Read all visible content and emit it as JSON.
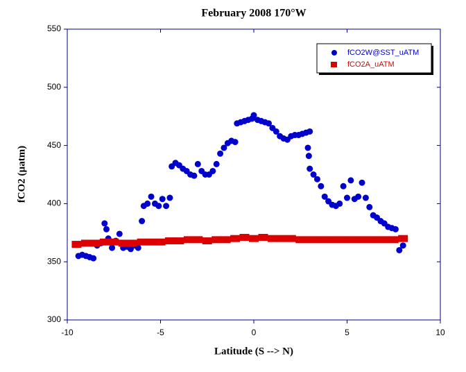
{
  "chart_data": {
    "type": "scatter",
    "title": "February 2008 170°W",
    "x_label": "Latitude (S --> N)",
    "y_label": "fCO2 (µatm)",
    "xlim": [
      -10,
      10
    ],
    "xticks": [
      -10,
      -5,
      0,
      5,
      10
    ],
    "ylim": [
      300,
      550
    ],
    "yticks": [
      300,
      350,
      400,
      450,
      500,
      550
    ],
    "legend": "upper right",
    "series": [
      {
        "name": "fCO2W@SST_uATM",
        "color": "#0000cc",
        "marker": "circle",
        "x": [
          -9.4,
          -9.2,
          -9.0,
          -8.8,
          -8.6,
          -8.4,
          -8.2,
          -8.0,
          -7.9,
          -7.8,
          -7.6,
          -7.4,
          -7.2,
          -7.0,
          -6.8,
          -6.6,
          -6.4,
          -6.2,
          -6.0,
          -5.9,
          -5.7,
          -5.5,
          -5.3,
          -5.1,
          -4.9,
          -4.7,
          -4.5,
          -4.4,
          -4.2,
          -4.0,
          -3.8,
          -3.6,
          -3.4,
          -3.2,
          -3.0,
          -2.8,
          -2.6,
          -2.4,
          -2.2,
          -2.0,
          -1.8,
          -1.6,
          -1.4,
          -1.2,
          -1.0,
          -0.9,
          -0.7,
          -0.5,
          -0.3,
          -0.1,
          0.0,
          0.2,
          0.4,
          0.6,
          0.8,
          1.0,
          1.2,
          1.4,
          1.6,
          1.8,
          2.0,
          2.2,
          2.4,
          2.6,
          2.8,
          3.0,
          2.9,
          2.95,
          3.0,
          3.2,
          3.4,
          3.6,
          3.8,
          4.0,
          4.2,
          4.4,
          4.6,
          4.8,
          5.0,
          5.2,
          5.4,
          5.6,
          5.8,
          6.0,
          6.2,
          6.4,
          6.6,
          6.8,
          7.0,
          7.2,
          7.4,
          7.6,
          7.8,
          8.0
        ],
        "values": [
          355,
          356,
          355,
          354,
          353,
          364,
          366,
          383,
          378,
          370,
          362,
          368,
          374,
          362,
          363,
          361,
          364,
          362,
          385,
          398,
          400,
          406,
          400,
          398,
          404,
          398,
          405,
          432,
          435,
          433,
          430,
          428,
          425,
          424,
          434,
          428,
          425,
          425,
          428,
          434,
          443,
          448,
          452,
          454,
          453,
          469,
          470,
          471,
          472,
          473,
          476,
          472,
          471,
          470,
          469,
          465,
          462,
          458,
          456,
          455,
          458,
          459,
          459,
          460,
          461,
          462,
          448,
          441,
          430,
          425,
          421,
          415,
          406,
          402,
          399,
          398,
          400,
          415,
          405,
          420,
          404,
          406,
          418,
          405,
          397,
          390,
          388,
          385,
          383,
          380,
          379,
          378,
          360,
          364
        ]
      },
      {
        "name": "fCO2A_uATM",
        "color": "#dd0000",
        "marker": "square",
        "x": [
          -9.5,
          -9.0,
          -8.5,
          -8.0,
          -7.5,
          -7.0,
          -6.5,
          -6.0,
          -5.5,
          -5.0,
          -4.5,
          -4.0,
          -3.5,
          -3.0,
          -2.5,
          -2.0,
          -1.5,
          -1.0,
          -0.5,
          0.0,
          0.5,
          1.0,
          1.5,
          2.0,
          2.5,
          3.0,
          3.5,
          4.0,
          4.5,
          5.0,
          5.5,
          6.0,
          6.5,
          7.0,
          7.5,
          8.0
        ],
        "values": [
          365,
          366,
          366,
          367,
          367,
          366,
          366,
          367,
          367,
          367,
          368,
          368,
          369,
          369,
          368,
          369,
          369,
          370,
          371,
          370,
          371,
          370,
          370,
          370,
          369,
          369,
          369,
          369,
          369,
          369,
          369,
          369,
          369,
          369,
          369,
          370
        ]
      }
    ]
  }
}
